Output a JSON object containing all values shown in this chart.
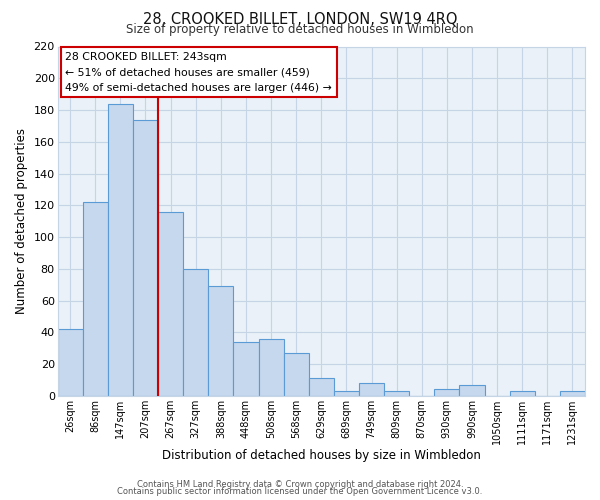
{
  "title": "28, CROOKED BILLET, LONDON, SW19 4RQ",
  "subtitle": "Size of property relative to detached houses in Wimbledon",
  "xlabel": "Distribution of detached houses by size in Wimbledon",
  "ylabel": "Number of detached properties",
  "bin_labels": [
    "26sqm",
    "86sqm",
    "147sqm",
    "207sqm",
    "267sqm",
    "327sqm",
    "388sqm",
    "448sqm",
    "508sqm",
    "568sqm",
    "629sqm",
    "689sqm",
    "749sqm",
    "809sqm",
    "870sqm",
    "930sqm",
    "990sqm",
    "1050sqm",
    "1111sqm",
    "1171sqm",
    "1231sqm"
  ],
  "bar_heights": [
    42,
    122,
    184,
    174,
    116,
    80,
    69,
    34,
    36,
    27,
    11,
    3,
    8,
    3,
    0,
    4,
    7,
    0,
    3,
    0,
    3
  ],
  "bar_color": "#c5d8ed",
  "bar_edge_color": "#5b9bd5",
  "vline_color": "#cc0000",
  "ylim": [
    0,
    220
  ],
  "yticks": [
    0,
    20,
    40,
    60,
    80,
    100,
    120,
    140,
    160,
    180,
    200,
    220
  ],
  "annotation_title": "28 CROOKED BILLET: 243sqm",
  "annotation_line1": "← 51% of detached houses are smaller (459)",
  "annotation_line2": "49% of semi-detached houses are larger (446) →",
  "annotation_box_color": "#ffffff",
  "annotation_box_edge": "#cc0000",
  "footer1": "Contains HM Land Registry data © Crown copyright and database right 2024.",
  "footer2": "Contains public sector information licensed under the Open Government Licence v3.0.",
  "background_color": "#ffffff",
  "grid_color": "#c5d5e5",
  "plot_bg_color": "#eaf1f8"
}
